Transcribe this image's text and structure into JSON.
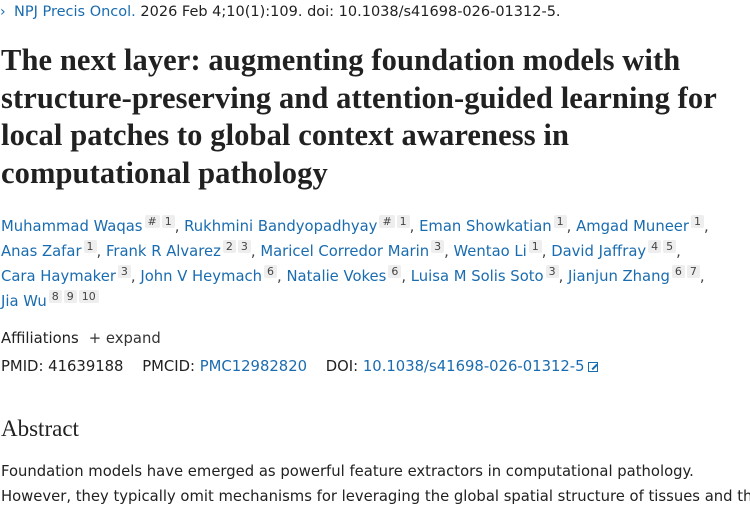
{
  "citation": {
    "journal": "NPJ Precis Oncol.",
    "details": " 2026 Feb 4;10(1):109. doi: 10.1038/s41698-026-01312-5.",
    "chevron_icon": "chevron-right-icon"
  },
  "title": "The next layer: augmenting foundation models with structure-preserving and attention-guided learning for local patches to global context awareness in computational pathology",
  "authors": [
    {
      "name": "Muhammad Waqas",
      "sups": [
        "#",
        "1"
      ]
    },
    {
      "name": "Rukhmini Bandyopadhyay",
      "sups": [
        "#",
        "1"
      ]
    },
    {
      "name": "Eman Showkatian",
      "sups": [
        "1"
      ]
    },
    {
      "name": "Amgad Muneer",
      "sups": [
        "1"
      ]
    },
    {
      "name": "Anas Zafar",
      "sups": [
        "1"
      ]
    },
    {
      "name": "Frank R Alvarez",
      "sups": [
        "2",
        "3"
      ]
    },
    {
      "name": "Maricel Corredor Marin",
      "sups": [
        "3"
      ]
    },
    {
      "name": "Wentao Li",
      "sups": [
        "1"
      ]
    },
    {
      "name": "David Jaffray",
      "sups": [
        "4",
        "5"
      ]
    },
    {
      "name": "Cara Haymaker",
      "sups": [
        "3"
      ]
    },
    {
      "name": "John V Heymach",
      "sups": [
        "6"
      ]
    },
    {
      "name": "Natalie Vokes",
      "sups": [
        "6"
      ]
    },
    {
      "name": "Luisa M Solis Soto",
      "sups": [
        "3"
      ]
    },
    {
      "name": "Jianjun Zhang",
      "sups": [
        "6",
        "7"
      ]
    },
    {
      "name": "Jia Wu",
      "sups": [
        "8",
        "9",
        "10"
      ]
    }
  ],
  "affiliations": {
    "label": "Affiliations",
    "expand_label": "+ expand"
  },
  "ids": {
    "pmid_label": "PMID:",
    "pmid": "41639188",
    "pmcid_label": "PMCID:",
    "pmcid": "PMC12982820",
    "doi_label": "DOI:",
    "doi": "10.1038/s41698-026-01312-5",
    "external_icon": "external-link-icon"
  },
  "abstract": {
    "heading": "Abstract",
    "lines": [
      "Foundation models have emerged as powerful feature extractors in computational pathology.",
      "However, they typically omit mechanisms for leveraging the global spatial structure of tissues and the"
    ]
  },
  "colors": {
    "link": "#1a6cb0",
    "text": "#212121",
    "sup_bg": "#eeeeee"
  }
}
